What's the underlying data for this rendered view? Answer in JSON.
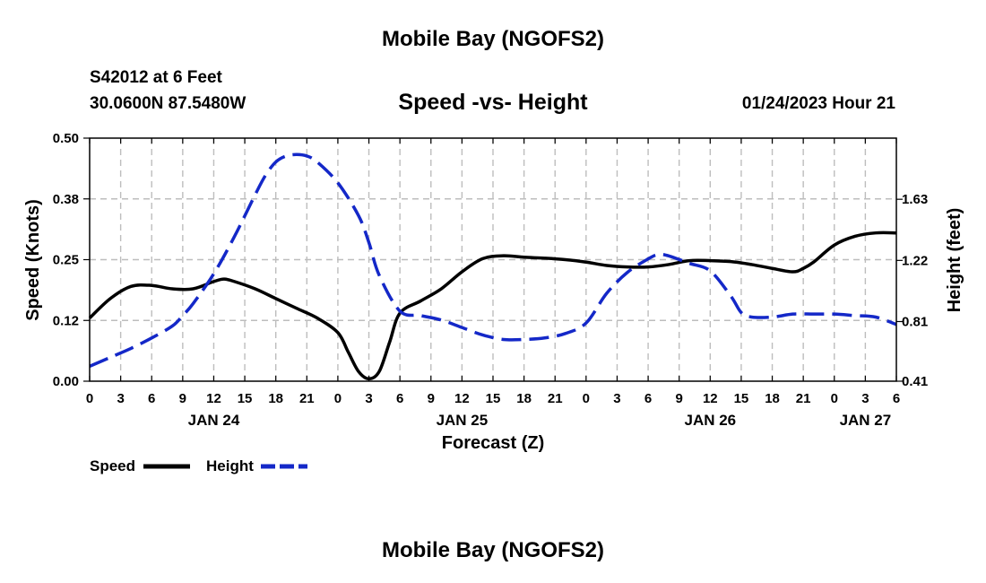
{
  "page": {
    "title_top": "Mobile Bay (NGOFS2)",
    "title_bottom": "Mobile Bay (NGOFS2)",
    "station_line1": "S42012 at 6 Feet",
    "station_line2": "30.0600N  87.5480W",
    "subtitle": "Speed -vs- Height",
    "datetime": "01/24/2023 Hour 21"
  },
  "chart_data": {
    "type": "line",
    "title": "Speed -vs- Height",
    "xlabel": "Forecast (Z)",
    "ylabel": "Speed (Knots)",
    "y2label": "Height (feet)",
    "xlim": [
      0,
      78
    ],
    "ylim": [
      0,
      0.5
    ],
    "y2lim": [
      0.41,
      2.04
    ],
    "grid": true,
    "x_tick_values": [
      0,
      3,
      6,
      9,
      12,
      15,
      18,
      21,
      24,
      27,
      30,
      33,
      36,
      39,
      42,
      45,
      48,
      51,
      54,
      57,
      60,
      63,
      66,
      69,
      72,
      75,
      78
    ],
    "x_tick_labels": [
      "0",
      "3",
      "6",
      "9",
      "12",
      "15",
      "18",
      "21",
      "0",
      "3",
      "6",
      "9",
      "12",
      "15",
      "18",
      "21",
      "0",
      "3",
      "6",
      "9",
      "12",
      "15",
      "18",
      "21",
      "0",
      "3",
      "6"
    ],
    "date_labels": [
      {
        "x": 12,
        "label": "JAN 24"
      },
      {
        "x": 36,
        "label": "JAN 25"
      },
      {
        "x": 60,
        "label": "JAN 26"
      },
      {
        "x": 75,
        "label": "JAN 27"
      }
    ],
    "y_ticks": [
      {
        "value": 0.0,
        "label": "0.00"
      },
      {
        "value": 0.125,
        "label": "0.12"
      },
      {
        "value": 0.25,
        "label": "0.25"
      },
      {
        "value": 0.375,
        "label": "0.38"
      },
      {
        "value": 0.5,
        "label": "0.50"
      }
    ],
    "y2_ticks": [
      {
        "value": 0.41,
        "label": "0.41"
      },
      {
        "value": 0.81,
        "label": "0.81"
      },
      {
        "value": 1.22,
        "label": "1.22"
      },
      {
        "value": 1.63,
        "label": "1.63"
      }
    ],
    "series": [
      {
        "name": "Speed",
        "axis": "left",
        "color": "#000000",
        "dash": "solid",
        "x": [
          0,
          2,
          4,
          6,
          8,
          10,
          12,
          13,
          14,
          16,
          18,
          20,
          22,
          24,
          25,
          26,
          27,
          28,
          29,
          30,
          32,
          34,
          36,
          38,
          40,
          42,
          44,
          46,
          48,
          50,
          52,
          54,
          56,
          58,
          60,
          62,
          64,
          66,
          68,
          69,
          70,
          72,
          74,
          76,
          78
        ],
        "y": [
          0.13,
          0.17,
          0.195,
          0.197,
          0.19,
          0.19,
          0.205,
          0.21,
          0.205,
          0.19,
          0.17,
          0.15,
          0.13,
          0.1,
          0.06,
          0.02,
          0.005,
          0.02,
          0.08,
          0.14,
          0.165,
          0.19,
          0.225,
          0.252,
          0.258,
          0.255,
          0.253,
          0.25,
          0.245,
          0.238,
          0.235,
          0.235,
          0.24,
          0.248,
          0.248,
          0.246,
          0.24,
          0.232,
          0.225,
          0.232,
          0.245,
          0.28,
          0.298,
          0.305,
          0.305
        ]
      },
      {
        "name": "Height",
        "axis": "right",
        "color": "#1428c8",
        "dash": "dashed",
        "x": [
          0,
          2,
          4,
          6,
          8,
          9,
          10,
          12,
          14,
          16,
          17,
          18,
          19,
          20,
          21,
          22,
          24,
          26,
          27,
          28,
          30,
          32,
          34,
          36,
          38,
          40,
          42,
          44,
          46,
          48,
          50,
          52,
          54,
          55,
          56,
          58,
          60,
          62,
          63,
          64,
          66,
          68,
          70,
          72,
          74,
          76,
          78
        ],
        "y": [
          0.51,
          0.57,
          0.63,
          0.7,
          0.78,
          0.85,
          0.93,
          1.13,
          1.38,
          1.66,
          1.79,
          1.88,
          1.92,
          1.93,
          1.92,
          1.88,
          1.74,
          1.52,
          1.34,
          1.12,
          0.88,
          0.85,
          0.82,
          0.77,
          0.72,
          0.69,
          0.69,
          0.7,
          0.73,
          0.8,
          1.0,
          1.14,
          1.23,
          1.26,
          1.25,
          1.2,
          1.15,
          0.98,
          0.87,
          0.84,
          0.84,
          0.86,
          0.86,
          0.86,
          0.85,
          0.84,
          0.79
        ]
      }
    ],
    "legend": [
      {
        "label": "Speed",
        "color": "#000000",
        "dash": "solid"
      },
      {
        "label": "Height",
        "color": "#1428c8",
        "dash": "dashed"
      }
    ]
  }
}
